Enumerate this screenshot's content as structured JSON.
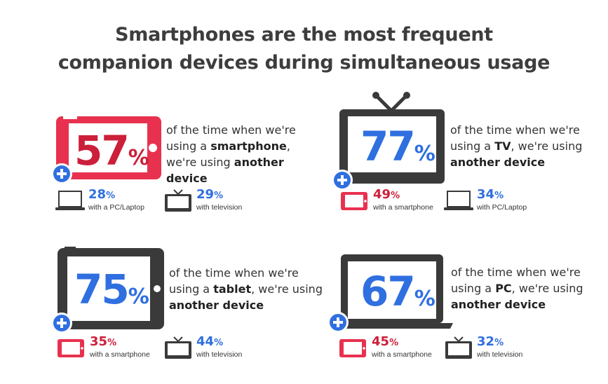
{
  "title": {
    "line1": "Smartphones are the most frequent",
    "line2": "companion devices during simultaneous usage"
  },
  "colors": {
    "blue": "#2f6fe0",
    "red": "#cc1f3a",
    "pink": "#e8314f",
    "dark": "#3a3a3a"
  },
  "chart_data": {
    "type": "table",
    "title": "Smartphones are the most frequent companion devices during simultaneous usage",
    "panels": [
      {
        "device": "smartphone",
        "value": 57,
        "pct_symbol": "%",
        "desc_pre": "of the time when we're using a ",
        "desc_device": "smartphone",
        "desc_post": ", we're using ",
        "desc_end": "another device",
        "companions": [
          {
            "icon": "laptop-icon",
            "value": 28,
            "label": "with a PC/Laptop"
          },
          {
            "icon": "tv-icon",
            "value": 29,
            "label": "with television"
          }
        ]
      },
      {
        "device": "TV",
        "value": 77,
        "pct_symbol": "%",
        "desc_pre": "of the time when we're using a ",
        "desc_device": "TV",
        "desc_post": ", we're using ",
        "desc_end": "another device",
        "companions": [
          {
            "icon": "smartphone-icon",
            "value": 49,
            "label": "with a smartphone"
          },
          {
            "icon": "laptop-icon",
            "value": 34,
            "label": "with PC/Laptop"
          }
        ]
      },
      {
        "device": "tablet",
        "value": 75,
        "pct_symbol": "%",
        "desc_pre": "of the time when we're using a ",
        "desc_device": "tablet",
        "desc_post": ", we're using ",
        "desc_end": "another device",
        "companions": [
          {
            "icon": "smartphone-icon",
            "value": 35,
            "label": "with a smartphone"
          },
          {
            "icon": "tv-icon",
            "value": 44,
            "label": "with television"
          }
        ]
      },
      {
        "device": "PC",
        "value": 67,
        "pct_symbol": "%",
        "desc_pre": "of the time when we're using a ",
        "desc_device": "PC",
        "desc_post": ", we're using ",
        "desc_end": "another device",
        "companions": [
          {
            "icon": "smartphone-icon",
            "value": 45,
            "label": "with a smartphone"
          },
          {
            "icon": "tv-icon",
            "value": 32,
            "label": "with television"
          }
        ]
      }
    ]
  }
}
